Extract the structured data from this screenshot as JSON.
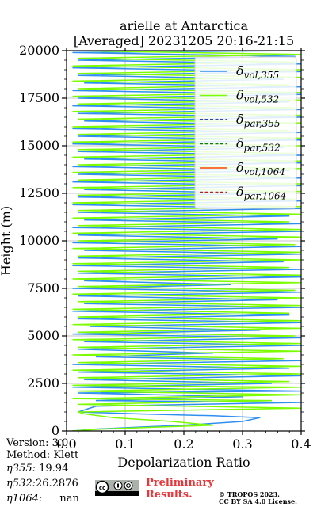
{
  "chart_data": {
    "type": "line",
    "title": "arielle at Antarctica",
    "subtitle": "[Averaged] 20231205 20:16-21:15",
    "xlabel": "Depolarization Ratio",
    "ylabel": "Height (m)",
    "xlim": [
      0.0,
      0.4
    ],
    "ylim": [
      0,
      20000
    ],
    "xticks": [
      "0.0",
      "0.1",
      "0.2",
      "0.3",
      "0.4"
    ],
    "yticks": [
      "0",
      "2500",
      "5000",
      "7500",
      "10000",
      "12500",
      "15000",
      "17500",
      "20000"
    ],
    "grid": true,
    "legend_position": "top-right",
    "legend": [
      {
        "label": "δvol,355",
        "main": "δ",
        "sub": "vol,355",
        "color": "#2e8ff0",
        "dash": "solid"
      },
      {
        "label": "δvol,532",
        "main": "δ",
        "sub": "vol,532",
        "color": "#7cfc00",
        "dash": "solid"
      },
      {
        "label": "δpar,355",
        "main": "δ",
        "sub": "par,355",
        "color": "#00008b",
        "dash": "dashed"
      },
      {
        "label": "δpar,532",
        "main": "δ",
        "sub": "par,532",
        "color": "#008000",
        "dash": "dashed"
      },
      {
        "label": "δvol,1064",
        "main": "δ",
        "sub": "vol,1064",
        "color": "#ff4500",
        "dash": "solid"
      },
      {
        "label": "δpar,1064",
        "main": "δ",
        "sub": "par,1064",
        "color": "#b22222",
        "dash": "dashed"
      }
    ],
    "series": [
      {
        "name": "δvol,355",
        "color": "#2e8ff0",
        "points": [
          [
            0.01,
            0
          ],
          [
            0.05,
            100
          ],
          [
            0.12,
            200
          ],
          [
            0.2,
            300
          ],
          [
            0.3,
            500
          ],
          [
            0.33,
            700
          ],
          [
            0.25,
            800
          ],
          [
            0.12,
            900
          ],
          [
            0.02,
            1000
          ],
          [
            0.05,
            1300
          ],
          [
            0.22,
            1400
          ],
          [
            0.4,
            1500
          ],
          [
            0.05,
            1600
          ],
          [
            0.3,
            1800
          ],
          [
            0.02,
            2000
          ],
          [
            0.4,
            2100
          ],
          [
            0.01,
            2300
          ],
          [
            0.35,
            2500
          ],
          [
            0.03,
            2700
          ],
          [
            0.4,
            2900
          ],
          [
            0.02,
            3100
          ],
          [
            0.38,
            3300
          ],
          [
            0.01,
            3500
          ],
          [
            0.4,
            3700
          ],
          [
            0.05,
            3900
          ],
          [
            0.25,
            4100
          ],
          [
            0.02,
            4300
          ],
          [
            0.4,
            4500
          ],
          [
            0.03,
            4700
          ],
          [
            0.4,
            4900
          ],
          [
            0.01,
            5100
          ],
          [
            0.33,
            5300
          ],
          [
            0.04,
            5500
          ],
          [
            0.4,
            5700
          ],
          [
            0.02,
            5900
          ],
          [
            0.38,
            6100
          ],
          [
            0.01,
            6300
          ],
          [
            0.4,
            6500
          ],
          [
            0.03,
            6700
          ],
          [
            0.36,
            6900
          ],
          [
            0.02,
            7100
          ],
          [
            0.4,
            7300
          ],
          [
            0.01,
            7500
          ],
          [
            0.28,
            7700
          ],
          [
            0.03,
            7900
          ],
          [
            0.4,
            8100
          ],
          [
            0.02,
            8300
          ],
          [
            0.4,
            8500
          ],
          [
            0.01,
            8700
          ],
          [
            0.37,
            8900
          ],
          [
            0.02,
            9100
          ],
          [
            0.4,
            9300
          ],
          [
            0.03,
            9500
          ],
          [
            0.4,
            9700
          ],
          [
            0.01,
            9900
          ],
          [
            0.36,
            10100
          ],
          [
            0.02,
            10300
          ],
          [
            0.4,
            10500
          ],
          [
            0.01,
            10700
          ],
          [
            0.4,
            10900
          ],
          [
            0.03,
            11100
          ],
          [
            0.38,
            11300
          ],
          [
            0.02,
            11500
          ],
          [
            0.4,
            11700
          ],
          [
            0.01,
            11900
          ],
          [
            0.4,
            12100
          ],
          [
            0.02,
            12300
          ],
          [
            0.35,
            12500
          ],
          [
            0.03,
            12700
          ],
          [
            0.4,
            12900
          ],
          [
            0.01,
            13100
          ],
          [
            0.4,
            13300
          ],
          [
            0.02,
            13500
          ],
          [
            0.38,
            13700
          ],
          [
            0.01,
            13900
          ],
          [
            0.4,
            14100
          ],
          [
            0.03,
            14300
          ],
          [
            0.4,
            14500
          ],
          [
            0.02,
            14700
          ],
          [
            0.37,
            14900
          ],
          [
            0.01,
            15100
          ],
          [
            0.4,
            15300
          ],
          [
            0.02,
            15500
          ],
          [
            0.4,
            15700
          ],
          [
            0.01,
            15900
          ],
          [
            0.36,
            16100
          ],
          [
            0.03,
            16300
          ],
          [
            0.4,
            16500
          ],
          [
            0.02,
            16700
          ],
          [
            0.4,
            16900
          ],
          [
            0.01,
            17100
          ],
          [
            0.38,
            17300
          ],
          [
            0.02,
            17500
          ],
          [
            0.4,
            17700
          ],
          [
            0.01,
            17900
          ],
          [
            0.4,
            18100
          ],
          [
            0.03,
            18300
          ],
          [
            0.37,
            18500
          ],
          [
            0.02,
            18700
          ],
          [
            0.4,
            18900
          ],
          [
            0.01,
            19100
          ],
          [
            0.4,
            19300
          ],
          [
            0.02,
            19500
          ],
          [
            0.39,
            19700
          ],
          [
            0.01,
            19900
          ],
          [
            0.4,
            20000
          ]
        ]
      },
      {
        "name": "δvol,532",
        "color": "#7cfc00",
        "points": [
          [
            0.01,
            0
          ],
          [
            0.06,
            100
          ],
          [
            0.15,
            200
          ],
          [
            0.25,
            300
          ],
          [
            0.18,
            500
          ],
          [
            0.08,
            700
          ],
          [
            0.03,
            900
          ],
          [
            0.02,
            1000
          ],
          [
            0.4,
            1200
          ],
          [
            0.02,
            1400
          ],
          [
            0.35,
            1600
          ],
          [
            0.01,
            1700
          ],
          [
            0.4,
            1900
          ],
          [
            0.02,
            2100
          ],
          [
            0.4,
            2300
          ],
          [
            0.01,
            2400
          ],
          [
            0.38,
            2600
          ],
          [
            0.02,
            2800
          ],
          [
            0.4,
            3000
          ],
          [
            0.01,
            3200
          ],
          [
            0.4,
            3400
          ],
          [
            0.02,
            3600
          ],
          [
            0.37,
            3800
          ],
          [
            0.01,
            4000
          ],
          [
            0.4,
            4200
          ],
          [
            0.02,
            4400
          ],
          [
            0.4,
            4600
          ],
          [
            0.01,
            4800
          ],
          [
            0.39,
            5000
          ],
          [
            0.02,
            5200
          ],
          [
            0.4,
            5400
          ],
          [
            0.01,
            5600
          ],
          [
            0.4,
            5800
          ],
          [
            0.02,
            6000
          ],
          [
            0.38,
            6200
          ],
          [
            0.01,
            6400
          ],
          [
            0.4,
            6600
          ],
          [
            0.02,
            6800
          ],
          [
            0.4,
            7000
          ],
          [
            0.01,
            7200
          ],
          [
            0.39,
            7400
          ],
          [
            0.02,
            7600
          ],
          [
            0.4,
            7800
          ],
          [
            0.01,
            8000
          ],
          [
            0.4,
            8200
          ],
          [
            0.02,
            8400
          ],
          [
            0.38,
            8600
          ],
          [
            0.01,
            8800
          ],
          [
            0.4,
            9000
          ],
          [
            0.02,
            9200
          ],
          [
            0.4,
            9400
          ],
          [
            0.01,
            9600
          ],
          [
            0.39,
            9800
          ],
          [
            0.02,
            10000
          ],
          [
            0.4,
            10200
          ],
          [
            0.01,
            10400
          ],
          [
            0.4,
            10600
          ],
          [
            0.02,
            10800
          ],
          [
            0.38,
            11000
          ],
          [
            0.01,
            11200
          ],
          [
            0.4,
            11400
          ],
          [
            0.02,
            11600
          ],
          [
            0.4,
            11800
          ],
          [
            0.01,
            12000
          ],
          [
            0.39,
            12200
          ],
          [
            0.02,
            12400
          ],
          [
            0.4,
            12600
          ],
          [
            0.01,
            12800
          ],
          [
            0.4,
            13000
          ],
          [
            0.02,
            13200
          ],
          [
            0.38,
            13400
          ],
          [
            0.01,
            13600
          ],
          [
            0.4,
            13800
          ],
          [
            0.02,
            14000
          ],
          [
            0.4,
            14200
          ],
          [
            0.01,
            14400
          ],
          [
            0.39,
            14600
          ],
          [
            0.02,
            14800
          ],
          [
            0.4,
            15000
          ],
          [
            0.01,
            15200
          ],
          [
            0.4,
            15400
          ],
          [
            0.02,
            15600
          ],
          [
            0.38,
            15800
          ],
          [
            0.01,
            16000
          ],
          [
            0.4,
            16200
          ],
          [
            0.02,
            16400
          ],
          [
            0.4,
            16600
          ],
          [
            0.01,
            16800
          ],
          [
            0.39,
            17000
          ],
          [
            0.02,
            17200
          ],
          [
            0.4,
            17400
          ],
          [
            0.01,
            17600
          ],
          [
            0.4,
            17800
          ],
          [
            0.02,
            18000
          ],
          [
            0.38,
            18200
          ],
          [
            0.01,
            18400
          ],
          [
            0.4,
            18600
          ],
          [
            0.02,
            18800
          ],
          [
            0.4,
            19000
          ],
          [
            0.01,
            19200
          ],
          [
            0.39,
            19400
          ],
          [
            0.02,
            19600
          ],
          [
            0.4,
            19800
          ],
          [
            0.01,
            20000
          ]
        ]
      }
    ]
  },
  "info": {
    "version": "Version: 3.0",
    "method": "Method: Klett",
    "eta355_label": "η355:",
    "eta355_value": "19.94",
    "eta532_label": "η532:",
    "eta532_value": "26.2876",
    "eta1064_label": "η1064:",
    "eta1064_value": "nan"
  },
  "footer": {
    "preliminary_line1": "Preliminary",
    "preliminary_line2": "Results.",
    "copyright_line1": "© TROPOS 2023.",
    "copyright_line2": "CC BY SA 4.0 License.",
    "license_badge": "cc-by-sa-badge"
  }
}
